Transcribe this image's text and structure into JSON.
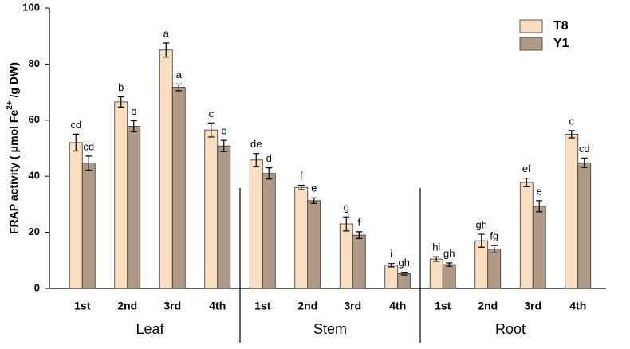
{
  "chart_data": {
    "type": "bar",
    "y_label": {
      "text": "FRAP activity ( μmol Fe",
      "superscript": "2+",
      "suffix": " /g DW)"
    },
    "categories": [
      "1st",
      "2nd",
      "3rd",
      "4th",
      "1st",
      "2nd",
      "3rd",
      "4th",
      "1st",
      "2nd",
      "3rd",
      "4th"
    ],
    "group_labels": [
      "Leaf",
      "Stem",
      "Root"
    ],
    "series": [
      {
        "name": "T8",
        "color": "#f9dfc0",
        "values": [
          52,
          66.5,
          85,
          56.5,
          45.8,
          36,
          23,
          8.3,
          10.5,
          17,
          37.8,
          55
        ],
        "errors": [
          3,
          1.8,
          2.5,
          2.5,
          2.3,
          0.8,
          2.5,
          0.6,
          0.8,
          2.3,
          1.5,
          1.3
        ],
        "letters": [
          "cd",
          "b",
          "a",
          "c",
          "de",
          "f",
          "g",
          "i",
          "hi",
          "gh",
          "ef",
          "c"
        ]
      },
      {
        "name": "Y1",
        "color": "#b09a85",
        "values": [
          44.7,
          57.8,
          71.7,
          50.8,
          41,
          31.3,
          19,
          5.3,
          8.5,
          14,
          29.3,
          44.8
        ],
        "errors": [
          2.5,
          2,
          1.2,
          2,
          2,
          1,
          1.2,
          0.5,
          0.6,
          1.3,
          2,
          1.7
        ],
        "letters": [
          "cd",
          "b",
          "a",
          "c",
          "d",
          "e",
          "f",
          "gh",
          "gh",
          "fg",
          "e",
          "cd"
        ]
      }
    ],
    "ylim": [
      0,
      100
    ],
    "yticks": [
      0,
      20,
      40,
      60,
      80,
      100
    ],
    "legend": "top-right"
  }
}
